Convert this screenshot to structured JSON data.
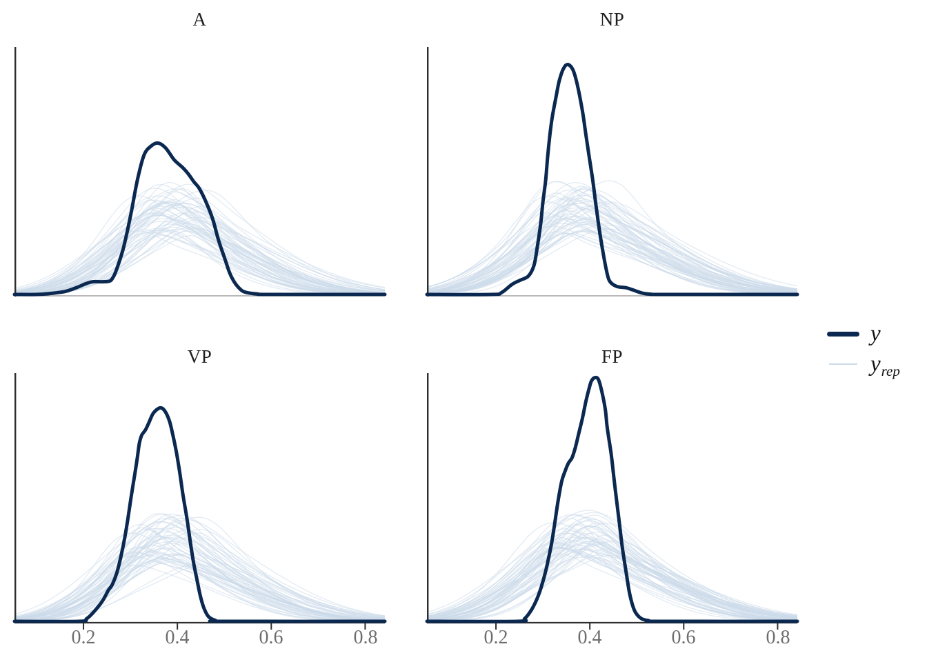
{
  "figure": {
    "kind": "posterior predictive density overlay, 2x2 facet grid"
  },
  "legend": {
    "y_label": "y",
    "yrep_main": "y",
    "yrep_sub": "rep"
  },
  "colors": {
    "y_line": "#0b2950",
    "yrep_line": "#ccdbe9",
    "yrep_opacity": 0.55,
    "axis": "#2e2e2e",
    "baseline_top_row": "#8f8f8f",
    "tick_label": "#6d6d6d",
    "title": "#1f1f1f"
  },
  "chart_data": {
    "type": "area",
    "subtype": "overlaid-density-curves",
    "x_domain": [
      0.053,
      0.842
    ],
    "x_ticks": [
      0.2,
      0.4,
      0.6,
      0.8
    ],
    "tick_labels": [
      "0.2",
      "0.4",
      "0.6",
      "0.8"
    ],
    "grid": "off",
    "legend_position": "right-middle",
    "series_legend": [
      "y",
      "y_rep"
    ],
    "panels": [
      {
        "title": "A",
        "y_peak": {
          "x": 0.36,
          "height": 0.62
        },
        "y_curve": [
          [
            0.053,
            0
          ],
          [
            0.1,
            0
          ],
          [
            0.125,
            0.003
          ],
          [
            0.16,
            0.012
          ],
          [
            0.185,
            0.028
          ],
          [
            0.205,
            0.044
          ],
          [
            0.219,
            0.052
          ],
          [
            0.241,
            0.052
          ],
          [
            0.256,
            0.055
          ],
          [
            0.263,
            0.07
          ],
          [
            0.27,
            0.1
          ],
          [
            0.285,
            0.19
          ],
          [
            0.3,
            0.32
          ],
          [
            0.315,
            0.47
          ],
          [
            0.329,
            0.571
          ],
          [
            0.344,
            0.608
          ],
          [
            0.359,
            0.62
          ],
          [
            0.375,
            0.6
          ],
          [
            0.393,
            0.552
          ],
          [
            0.41,
            0.522
          ],
          [
            0.422,
            0.497
          ],
          [
            0.435,
            0.462
          ],
          [
            0.447,
            0.433
          ],
          [
            0.463,
            0.37
          ],
          [
            0.476,
            0.304
          ],
          [
            0.488,
            0.22
          ],
          [
            0.501,
            0.147
          ],
          [
            0.511,
            0.09
          ],
          [
            0.52,
            0.055
          ],
          [
            0.532,
            0.025
          ],
          [
            0.545,
            0.009
          ],
          [
            0.57,
            0.002
          ],
          [
            0.6,
            0
          ],
          [
            0.842,
            0
          ]
        ],
        "yrep": {
          "count": 55,
          "seed": 11,
          "mode_mu": 0.383,
          "mode_jitter": 0.045,
          "h_lo": 0.24,
          "h_hi": 0.46,
          "sig_lo": 0.095,
          "sig_hi": 0.135,
          "skew_lo": 1.25,
          "skew_hi": 1.6
        }
      },
      {
        "title": "NP",
        "y_peak": {
          "x": 0.353,
          "height": 0.94
        },
        "y_curve": [
          [
            0.053,
            0
          ],
          [
            0.19,
            0
          ],
          [
            0.212,
            0.008
          ],
          [
            0.234,
            0.041
          ],
          [
            0.251,
            0.058
          ],
          [
            0.269,
            0.075
          ],
          [
            0.281,
            0.119
          ],
          [
            0.288,
            0.193
          ],
          [
            0.295,
            0.285
          ],
          [
            0.3,
            0.378
          ],
          [
            0.306,
            0.47
          ],
          [
            0.31,
            0.561
          ],
          [
            0.315,
            0.655
          ],
          [
            0.32,
            0.727
          ],
          [
            0.328,
            0.81
          ],
          [
            0.335,
            0.876
          ],
          [
            0.344,
            0.926
          ],
          [
            0.353,
            0.942
          ],
          [
            0.364,
            0.92
          ],
          [
            0.373,
            0.862
          ],
          [
            0.384,
            0.754
          ],
          [
            0.391,
            0.663
          ],
          [
            0.398,
            0.572
          ],
          [
            0.406,
            0.47
          ],
          [
            0.413,
            0.367
          ],
          [
            0.42,
            0.268
          ],
          [
            0.428,
            0.174
          ],
          [
            0.435,
            0.102
          ],
          [
            0.442,
            0.055
          ],
          [
            0.457,
            0.033
          ],
          [
            0.476,
            0.028
          ],
          [
            0.491,
            0.019
          ],
          [
            0.511,
            0.006
          ],
          [
            0.53,
            0.001
          ],
          [
            0.56,
            0
          ],
          [
            0.842,
            0
          ]
        ],
        "yrep": {
          "count": 55,
          "seed": 23,
          "mode_mu": 0.378,
          "mode_jitter": 0.04,
          "h_lo": 0.24,
          "h_hi": 0.48,
          "sig_lo": 0.1,
          "sig_hi": 0.14,
          "skew_lo": 1.3,
          "skew_hi": 1.6
        }
      },
      {
        "title": "VP",
        "y_peak": {
          "x": 0.363,
          "height": 0.87
        },
        "y_curve": [
          [
            0.053,
            0
          ],
          [
            0.19,
            0
          ],
          [
            0.207,
            0.011
          ],
          [
            0.226,
            0.047
          ],
          [
            0.241,
            0.085
          ],
          [
            0.253,
            0.127
          ],
          [
            0.261,
            0.149
          ],
          [
            0.271,
            0.198
          ],
          [
            0.28,
            0.267
          ],
          [
            0.288,
            0.342
          ],
          [
            0.295,
            0.424
          ],
          [
            0.302,
            0.515
          ],
          [
            0.31,
            0.609
          ],
          [
            0.315,
            0.672
          ],
          [
            0.319,
            0.727
          ],
          [
            0.324,
            0.76
          ],
          [
            0.332,
            0.782
          ],
          [
            0.339,
            0.81
          ],
          [
            0.349,
            0.851
          ],
          [
            0.363,
            0.872
          ],
          [
            0.373,
            0.86
          ],
          [
            0.383,
            0.819
          ],
          [
            0.39,
            0.764
          ],
          [
            0.398,
            0.69
          ],
          [
            0.405,
            0.608
          ],
          [
            0.412,
            0.516
          ],
          [
            0.42,
            0.424
          ],
          [
            0.427,
            0.332
          ],
          [
            0.434,
            0.245
          ],
          [
            0.442,
            0.167
          ],
          [
            0.449,
            0.103
          ],
          [
            0.456,
            0.057
          ],
          [
            0.466,
            0.02
          ],
          [
            0.481,
            0.004
          ],
          [
            0.5,
            0
          ],
          [
            0.842,
            0
          ]
        ],
        "yrep": {
          "count": 55,
          "seed": 37,
          "mode_mu": 0.372,
          "mode_jitter": 0.045,
          "h_lo": 0.22,
          "h_hi": 0.44,
          "sig_lo": 0.095,
          "sig_hi": 0.135,
          "skew_lo": 1.3,
          "skew_hi": 1.65
        }
      },
      {
        "title": "FP",
        "y_peak": {
          "x": 0.41,
          "height": 1.0
        },
        "y_curve": [
          [
            0.053,
            0
          ],
          [
            0.245,
            0
          ],
          [
            0.261,
            0.011
          ],
          [
            0.276,
            0.048
          ],
          [
            0.288,
            0.094
          ],
          [
            0.298,
            0.149
          ],
          [
            0.308,
            0.222
          ],
          [
            0.318,
            0.314
          ],
          [
            0.325,
            0.397
          ],
          [
            0.332,
            0.488
          ],
          [
            0.34,
            0.571
          ],
          [
            0.347,
            0.612
          ],
          [
            0.354,
            0.645
          ],
          [
            0.362,
            0.668
          ],
          [
            0.369,
            0.709
          ],
          [
            0.376,
            0.764
          ],
          [
            0.384,
            0.828
          ],
          [
            0.391,
            0.893
          ],
          [
            0.398,
            0.948
          ],
          [
            0.403,
            0.98
          ],
          [
            0.41,
            0.995
          ],
          [
            0.418,
            0.989
          ],
          [
            0.425,
            0.943
          ],
          [
            0.433,
            0.865
          ],
          [
            0.437,
            0.791
          ],
          [
            0.445,
            0.69
          ],
          [
            0.45,
            0.608
          ],
          [
            0.455,
            0.525
          ],
          [
            0.462,
            0.415
          ],
          [
            0.469,
            0.305
          ],
          [
            0.477,
            0.204
          ],
          [
            0.484,
            0.121
          ],
          [
            0.491,
            0.066
          ],
          [
            0.498,
            0.034
          ],
          [
            0.51,
            0.011
          ],
          [
            0.525,
            0.003
          ],
          [
            0.55,
            0
          ],
          [
            0.842,
            0
          ]
        ],
        "yrep": {
          "count": 55,
          "seed": 51,
          "mode_mu": 0.385,
          "mode_jitter": 0.042,
          "h_lo": 0.26,
          "h_hi": 0.46,
          "sig_lo": 0.1,
          "sig_hi": 0.14,
          "skew_lo": 1.3,
          "skew_hi": 1.6
        }
      }
    ]
  }
}
